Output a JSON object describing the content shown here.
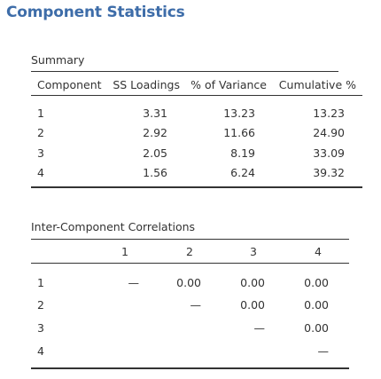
{
  "title": "Component Statistics",
  "summary": {
    "caption": "Summary",
    "headers": [
      "Component",
      "SS Loadings",
      "% of Variance",
      "Cumulative %"
    ],
    "rows": [
      [
        "1",
        "3.31",
        "13.23",
        "13.23"
      ],
      [
        "2",
        "2.92",
        "11.66",
        "24.90"
      ],
      [
        "3",
        "2.05",
        "8.19",
        "33.09"
      ],
      [
        "4",
        "1.56",
        "6.24",
        "39.32"
      ]
    ]
  },
  "correlations": {
    "caption": "Inter-Component Correlations",
    "headers": [
      "",
      "1",
      "2",
      "3",
      "4"
    ],
    "rows": [
      [
        "1",
        "—",
        "0.00",
        "0.00",
        "0.00"
      ],
      [
        "2",
        "",
        "—",
        "0.00",
        "0.00"
      ],
      [
        "3",
        "",
        "",
        "—",
        "0.00"
      ],
      [
        "4",
        "",
        "",
        "",
        "—"
      ]
    ]
  }
}
